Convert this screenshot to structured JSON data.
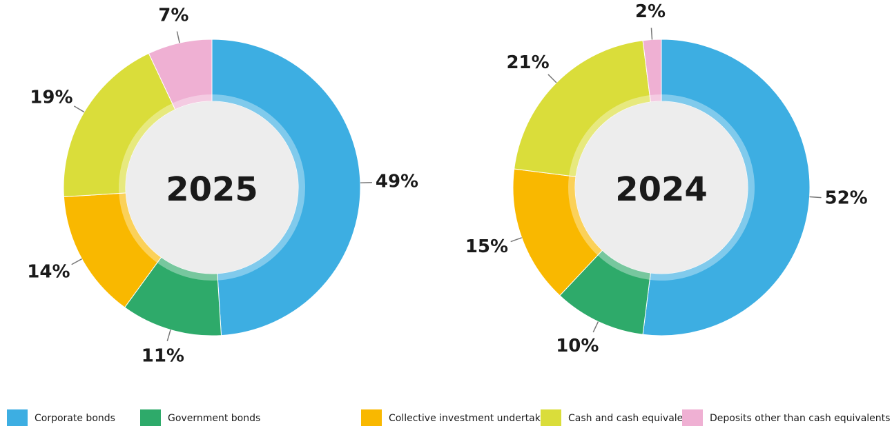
{
  "chart_data": [
    {
      "type": "pie",
      "title": "2025",
      "categories": [
        "Corporate bonds",
        "Government bonds",
        "Collective investment undertakings",
        "Cash and cash equivalents",
        "Deposits other than cash equivalents"
      ],
      "values": [
        49,
        11,
        14,
        19,
        7
      ],
      "value_labels": [
        "49%",
        "11%",
        "14%",
        "19%",
        "7%"
      ],
      "colors": [
        "#3daee2",
        "#2eaa6a",
        "#f9b800",
        "#dadd3a",
        "#efb0d3"
      ]
    },
    {
      "type": "pie",
      "title": "2024",
      "categories": [
        "Corporate bonds",
        "Government bonds",
        "Collective investment undertakings",
        "Cash and cash equivalents",
        "Deposits other than cash equivalents"
      ],
      "values": [
        52,
        10,
        15,
        21,
        2
      ],
      "value_labels": [
        "52%",
        "10%",
        "15%",
        "21%",
        "2%"
      ],
      "colors": [
        "#3daee2",
        "#2eaa6a",
        "#f9b800",
        "#dadd3a",
        "#efb0d3"
      ]
    }
  ]
}
